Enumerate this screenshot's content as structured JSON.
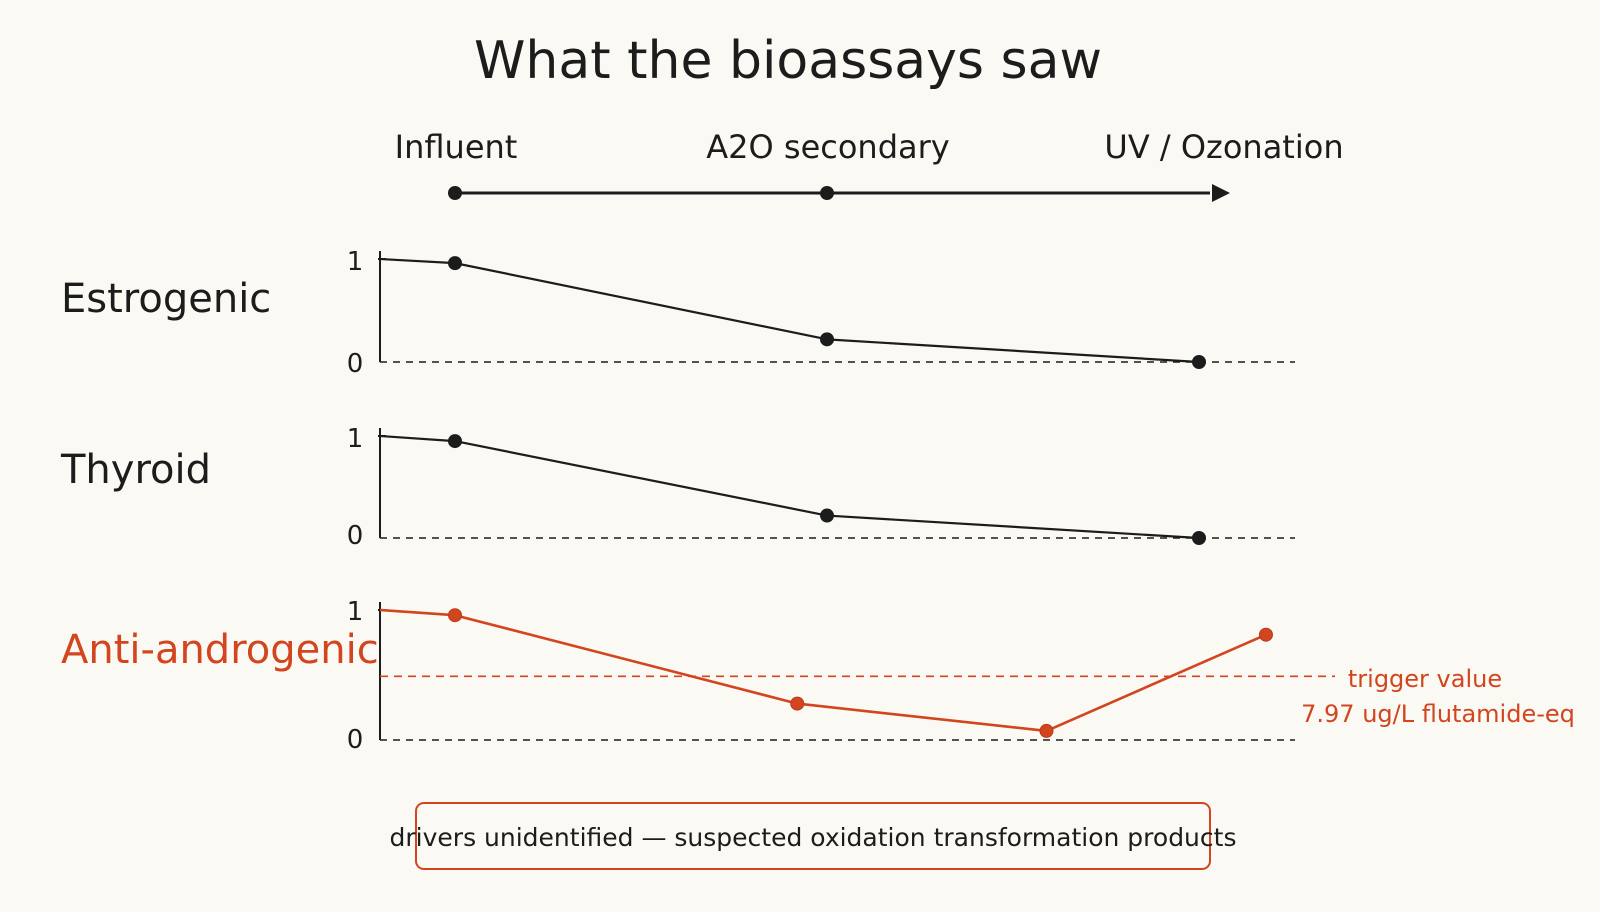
{
  "colors": {
    "ink": "#1c1c1c",
    "accent": "#d2451e",
    "background": "#fbf9f4"
  },
  "chart_data": {
    "type": "line",
    "title": "What the bioassays saw",
    "stages": [
      "Influent",
      "A2O secondary",
      "UV / Ozonation"
    ],
    "panels": [
      {
        "label": "Estrogenic",
        "color": "#1c1c1c",
        "yticks": [
          "1",
          "0"
        ],
        "ylim": [
          0,
          1
        ],
        "start": 1.0,
        "points": [
          [
            0,
            0.96
          ],
          [
            1,
            0.22
          ],
          [
            2,
            0.0
          ]
        ]
      },
      {
        "label": "Thyroid",
        "color": "#1c1c1c",
        "yticks": [
          "1",
          "0"
        ],
        "ylim": [
          0,
          1
        ],
        "start": 1.0,
        "points": [
          [
            0,
            0.95
          ],
          [
            1,
            0.22
          ],
          [
            2,
            0.0
          ]
        ]
      },
      {
        "label": "Anti-androgenic",
        "color": "#d2451e",
        "yticks": [
          "1",
          "0"
        ],
        "ylim": [
          0,
          1
        ],
        "start": 1.0,
        "points": [
          [
            0,
            0.96
          ],
          [
            0.92,
            0.28
          ],
          [
            1.59,
            0.07
          ],
          [
            2.18,
            0.81
          ]
        ],
        "threshold": 0.49,
        "threshold_label_1": "trigger value",
        "threshold_label_2": "7.97 ug/L flutamide-eq"
      }
    ],
    "note": "drivers unidentified — suspected oxidation transformation products"
  }
}
